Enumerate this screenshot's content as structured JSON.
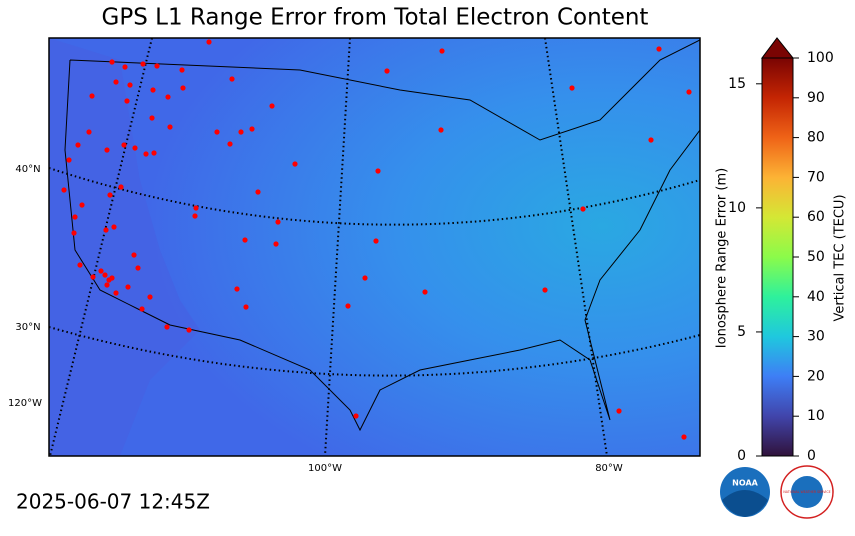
{
  "title": "GPS L1 Range Error from Total Electron Content",
  "timestamp": "2025-06-07 12:45Z",
  "map": {
    "lat_labels": [
      "40°N",
      "30°N"
    ],
    "lon_labels": [
      "120°W",
      "100°W",
      "80°W"
    ]
  },
  "colorbar": {
    "left_label": "Ionosphere Range Error (m)",
    "left_lim": [
      0,
      16.04
    ],
    "left_ticks": [
      0,
      5,
      10,
      15
    ],
    "right_label": "Vertical TEC (TECU)",
    "right_lim": [
      0,
      100
    ],
    "right_ticks": [
      0,
      10,
      20,
      30,
      40,
      50,
      60,
      70,
      80,
      90,
      100
    ]
  },
  "logos": {
    "noaa": "NOAA",
    "nws": "NATIONAL WEATHER SERVICE"
  }
}
